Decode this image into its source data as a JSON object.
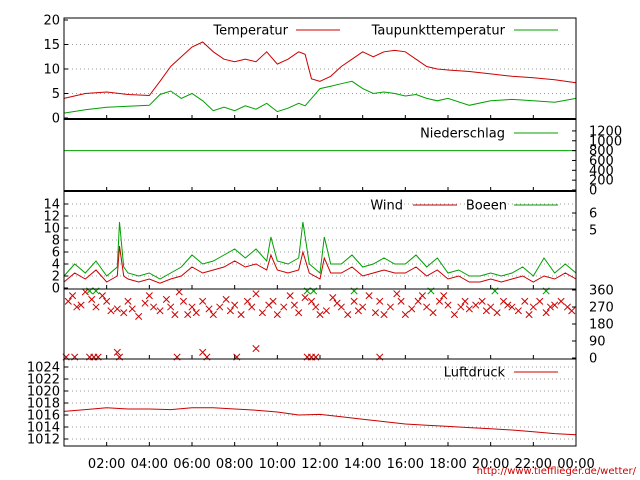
{
  "chart_data": {
    "type": "line",
    "x_ticks": [
      "02:00",
      "04:00",
      "06:00",
      "08:00",
      "10:00",
      "12:00",
      "14:00",
      "16:00",
      "18:00",
      "20:00",
      "22:00",
      "00:00"
    ],
    "credit": "http://www.tiefflieger.de/wetter/",
    "colors": {
      "primary": "#cc0000",
      "secondary": "#00a000",
      "grid": "#9a9a9a"
    },
    "panels": [
      {
        "id": "temperature",
        "ylim": [
          0,
          20
        ],
        "y_ticks_left": [
          "0",
          "5",
          "10",
          "15",
          "20"
        ],
        "y_ticks_right": [],
        "series": [
          {
            "name": "Temperatur",
            "color": "#cc0000",
            "x": [
              0,
              1,
              2,
              3,
              4,
              4.5,
              5,
              5.5,
              6,
              6.5,
              7,
              7.5,
              8,
              8.5,
              9,
              9.5,
              10,
              10.5,
              11,
              11.3,
              11.6,
              12,
              12.5,
              13,
              13.5,
              14,
              14.5,
              15,
              15.5,
              16,
              16.5,
              17,
              17.5,
              18,
              19,
              20,
              21,
              22,
              23,
              24
            ],
            "y": [
              4.0,
              5.0,
              5.3,
              4.8,
              4.6,
              7.5,
              10.5,
              12.5,
              14.5,
              15.5,
              13.5,
              12.0,
              11.5,
              12.0,
              11.5,
              13.5,
              11.0,
              12.0,
              13.5,
              13.0,
              8.0,
              7.5,
              8.5,
              10.5,
              12.0,
              13.5,
              12.5,
              13.5,
              13.8,
              13.5,
              12.0,
              10.5,
              10.0,
              9.8,
              9.5,
              9.0,
              8.5,
              8.2,
              7.8,
              7.2
            ]
          },
          {
            "name": "Taupunkttemperatur",
            "color": "#00a000",
            "x": [
              0,
              1,
              2,
              3,
              4,
              4.5,
              5,
              5.5,
              6,
              6.5,
              7,
              7.5,
              8,
              8.5,
              9,
              9.5,
              10,
              10.5,
              11,
              11.3,
              11.6,
              12,
              12.5,
              13,
              13.5,
              14,
              14.5,
              15,
              15.5,
              16,
              16.5,
              17,
              17.5,
              18,
              19,
              20,
              21,
              22,
              23,
              24
            ],
            "y": [
              1.0,
              1.7,
              2.2,
              2.4,
              2.6,
              4.8,
              5.5,
              4.0,
              5.0,
              3.5,
              1.5,
              2.2,
              1.5,
              2.5,
              1.8,
              3.0,
              1.3,
              2.0,
              3.0,
              2.5,
              4.0,
              6.0,
              6.5,
              7.0,
              7.5,
              6.0,
              5.0,
              5.3,
              5.0,
              4.5,
              4.8,
              4.0,
              3.5,
              4.0,
              2.6,
              3.5,
              3.8,
              3.5,
              3.2,
              4.0
            ]
          }
        ]
      },
      {
        "id": "precipitation",
        "ylim": [
          0,
          1300
        ],
        "y_ticks_left": [],
        "y_ticks_right": [
          "0",
          "200",
          "400",
          "600",
          "800",
          "1000",
          "1200"
        ],
        "series": [
          {
            "name": "Niederschlag",
            "color": "#00a000",
            "x": [
              0,
              24
            ],
            "y": [
              800,
              800
            ]
          }
        ]
      },
      {
        "id": "wind",
        "ylim": [
          0,
          15
        ],
        "y_ticks_left": [
          "0",
          "2",
          "4",
          "6",
          "8",
          "10",
          "12",
          "14"
        ],
        "y_ticks_right": [
          "5",
          "6"
        ],
        "series": [
          {
            "name": "Wind",
            "color": "#cc0000",
            "x": [
              0,
              0.5,
              1,
              1.5,
              2,
              2.5,
              2.6,
              2.8,
              3,
              3.5,
              4,
              4.5,
              5,
              5.5,
              6,
              6.5,
              7,
              7.5,
              8,
              8.5,
              9,
              9.5,
              9.7,
              10,
              10.5,
              11,
              11.2,
              11.5,
              12,
              12.2,
              12.5,
              13,
              13.5,
              14,
              14.5,
              15,
              15.5,
              16,
              16.5,
              17,
              17.5,
              18,
              18.5,
              19,
              19.5,
              20,
              20.5,
              21,
              21.5,
              22,
              22.5,
              23,
              23.5,
              24
            ],
            "y": [
              1.0,
              2.5,
              1.5,
              3.0,
              1.0,
              2.0,
              7.0,
              2.0,
              1.5,
              1.0,
              1.5,
              0.8,
              1.5,
              2.0,
              3.5,
              2.5,
              3.0,
              3.5,
              4.5,
              3.5,
              4.0,
              3.0,
              5.5,
              3.0,
              2.5,
              3.0,
              6.0,
              2.5,
              1.5,
              5.0,
              2.5,
              2.5,
              3.5,
              2.0,
              2.5,
              3.0,
              2.5,
              2.5,
              3.5,
              2.0,
              3.0,
              1.5,
              2.0,
              1.0,
              1.0,
              1.5,
              1.0,
              1.5,
              2.0,
              1.0,
              2.0,
              1.5,
              2.5,
              1.5
            ]
          },
          {
            "name": "Boeen",
            "color": "#00a000",
            "x": [
              0,
              0.5,
              1,
              1.5,
              2,
              2.5,
              2.6,
              2.8,
              3,
              3.5,
              4,
              4.5,
              5,
              5.5,
              6,
              6.5,
              7,
              7.5,
              8,
              8.5,
              9,
              9.5,
              9.7,
              10,
              10.5,
              11,
              11.2,
              11.5,
              12,
              12.2,
              12.5,
              13,
              13.5,
              14,
              14.5,
              15,
              15.5,
              16,
              16.5,
              17,
              17.5,
              18,
              18.5,
              19,
              19.5,
              20,
              20.5,
              21,
              21.5,
              22,
              22.5,
              23,
              23.5,
              24
            ],
            "y": [
              2.0,
              4.0,
              2.5,
              4.5,
              2.0,
              3.5,
              11.0,
              3.5,
              2.5,
              2.0,
              2.5,
              1.5,
              2.5,
              3.5,
              5.5,
              4.0,
              4.5,
              5.5,
              6.5,
              5.0,
              6.5,
              4.5,
              8.5,
              4.5,
              4.0,
              5.0,
              11.0,
              4.0,
              2.5,
              8.5,
              4.0,
              4.0,
              5.5,
              3.5,
              4.0,
              5.0,
              4.0,
              4.0,
              5.5,
              3.5,
              5.0,
              2.5,
              3.0,
              2.0,
              2.0,
              2.5,
              2.0,
              2.5,
              3.5,
              2.0,
              5.0,
              2.5,
              4.0,
              2.5
            ]
          }
        ]
      },
      {
        "id": "wind-direction",
        "type": "scatter",
        "ylim": [
          0,
          360
        ],
        "y_ticks_left": [],
        "y_ticks_right": [
          "0",
          "90",
          "180",
          "270",
          "360"
        ],
        "series": [
          {
            "name": "",
            "color": "#cc0000",
            "x": [
              0.2,
              0.4,
              0.6,
              0.8,
              1.0,
              1.3,
              1.5,
              1.8,
              2.0,
              2.2,
              2.5,
              2.8,
              3.0,
              3.2,
              3.5,
              3.8,
              4.0,
              4.2,
              4.5,
              4.8,
              5.0,
              5.2,
              5.4,
              5.6,
              5.8,
              6.0,
              6.2,
              6.5,
              6.8,
              7.0,
              7.3,
              7.6,
              7.8,
              8.0,
              8.3,
              8.6,
              8.8,
              9.0,
              9.3,
              9.6,
              9.8,
              10.0,
              10.3,
              10.6,
              10.8,
              11.0,
              11.3,
              11.6,
              11.8,
              12.0,
              12.3,
              12.6,
              12.8,
              13.0,
              13.3,
              13.6,
              13.8,
              14.0,
              14.3,
              14.6,
              14.8,
              15.0,
              15.3,
              15.6,
              15.8,
              16.0,
              16.3,
              16.6,
              16.8,
              17.0,
              17.3,
              17.6,
              17.8,
              18.0,
              18.3,
              18.6,
              18.8,
              19.0,
              19.3,
              19.6,
              19.8,
              20.0,
              20.3,
              20.6,
              20.8,
              21.0,
              21.3,
              21.6,
              21.8,
              22.0,
              22.3,
              22.6,
              22.8,
              23.0,
              23.3,
              23.6,
              23.8,
              0.1,
              0.5,
              1.2,
              1.4,
              1.6,
              2.6,
              5.3,
              6.7,
              8.1,
              11.4,
              11.6,
              11.8,
              14.8,
              2.5,
              6.5,
              9.0
            ],
            "y": [
              300,
              330,
              270,
              280,
              350,
              310,
              270,
              330,
              300,
              250,
              260,
              240,
              300,
              260,
              220,
              290,
              330,
              270,
              250,
              310,
              270,
              230,
              350,
              300,
              230,
              270,
              240,
              300,
              260,
              230,
              270,
              310,
              250,
              280,
              230,
              300,
              270,
              340,
              240,
              280,
              300,
              230,
              270,
              330,
              280,
              240,
              320,
              300,
              270,
              230,
              250,
              320,
              290,
              270,
              230,
              300,
              250,
              270,
              330,
              240,
              300,
              230,
              270,
              340,
              300,
              230,
              260,
              300,
              330,
              270,
              240,
              300,
              330,
              280,
              230,
              270,
              300,
              260,
              280,
              300,
              250,
              270,
              240,
              300,
              280,
              270,
              250,
              300,
              230,
              270,
              300,
              240,
              270,
              280,
              300,
              270,
              250,
              5,
              5,
              5,
              5,
              5,
              5,
              5,
              5,
              5,
              5,
              5,
              5,
              5,
              30,
              30,
              50
            ]
          },
          {
            "name": "",
            "color": "#00a000",
            "x": [
              1.2,
              1.5,
              11.4,
              11.7,
              13.6,
              17.2,
              20.2,
              22.6
            ],
            "y": [
              355,
              355,
              355,
              355,
              355,
              355,
              355,
              355
            ]
          }
        ]
      },
      {
        "id": "pressure",
        "ylim": [
          1011.5,
          1025
        ],
        "y_ticks_left": [
          "1012",
          "1014",
          "1016",
          "1018",
          "1020",
          "1022",
          "1024"
        ],
        "y_ticks_right": [],
        "series": [
          {
            "name": "Luftdruck",
            "color": "#cc0000",
            "x": [
              0,
              1,
              2,
              3,
              4,
              5,
              6,
              7,
              8,
              9,
              10,
              11,
              12,
              13,
              14,
              15,
              16,
              17,
              18,
              19,
              20,
              21,
              22,
              23,
              24
            ],
            "y": [
              1016.6,
              1016.9,
              1017.2,
              1017.0,
              1017.0,
              1016.9,
              1017.2,
              1017.2,
              1017.0,
              1016.8,
              1016.5,
              1016.0,
              1016.1,
              1015.7,
              1015.3,
              1014.9,
              1014.5,
              1014.3,
              1014.1,
              1013.9,
              1013.7,
              1013.5,
              1013.2,
              1012.9,
              1012.7
            ]
          }
        ]
      }
    ]
  }
}
